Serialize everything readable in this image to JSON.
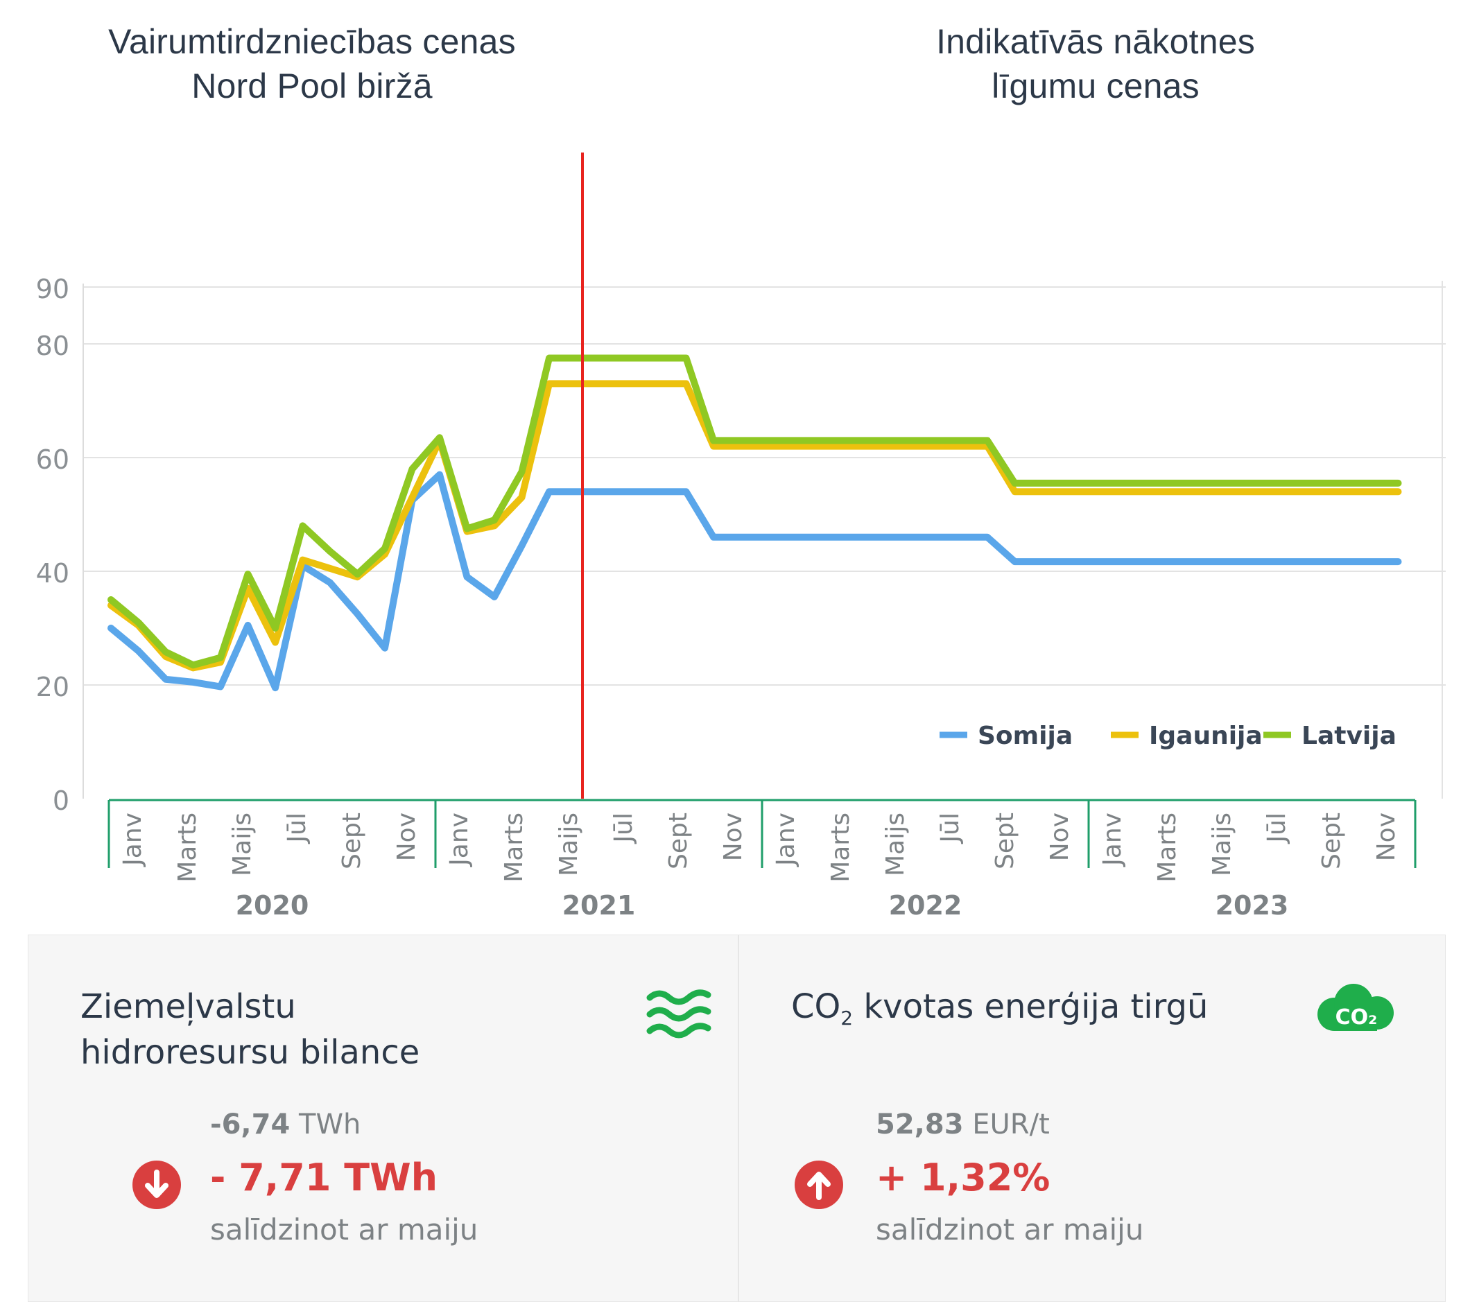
{
  "headings": {
    "left": "Vairumtirdzniecības cenas\nNord Pool biržā",
    "right": "Indikatīvās nākotnes\nlīgumu cenas"
  },
  "chart_data": {
    "type": "line",
    "ylim": [
      0,
      90
    ],
    "y_ticks": [
      "0",
      "20",
      "40",
      "60",
      "80",
      "90"
    ],
    "grid": true,
    "legend_position": "bottom-right",
    "month_labels": [
      "Janv",
      "Marts",
      "Maijs",
      "Jūl",
      "Sept",
      "Nov"
    ],
    "years": [
      "2020",
      "2021",
      "2022",
      "2023"
    ],
    "divider_after_month_index": 17,
    "divider_color": "#e8231e",
    "x": [
      0,
      1,
      2,
      3,
      4,
      5,
      6,
      7,
      8,
      9,
      10,
      11,
      12,
      13,
      14,
      15,
      16,
      17,
      18,
      19,
      20,
      21,
      22,
      23,
      24,
      25,
      26,
      27,
      28,
      29,
      30,
      31,
      32,
      33,
      34,
      35,
      36,
      37,
      38,
      39,
      40,
      41,
      42,
      43,
      44,
      45,
      46,
      47
    ],
    "series": [
      {
        "name": "Somija",
        "color": "#5aa6ea",
        "values": [
          30,
          26,
          21,
          20.5,
          19.7,
          30.5,
          19.5,
          41,
          38,
          32.5,
          26.5,
          52.5,
          57,
          39,
          35.5,
          44.5,
          54,
          54,
          54,
          54,
          54,
          54,
          46,
          46,
          46,
          46,
          46,
          46,
          46,
          46,
          46,
          46,
          46,
          41.7,
          41.7,
          41.7,
          41.7,
          41.7,
          41.7,
          41.7,
          41.7,
          41.7,
          41.7,
          41.7,
          41.7,
          41.7,
          41.7,
          41.7
        ]
      },
      {
        "name": "Igaunija",
        "color": "#ecc10d",
        "values": [
          34,
          30.5,
          25,
          23,
          24,
          37,
          27.5,
          42,
          40.5,
          39,
          43,
          53,
          63,
          47,
          48,
          53,
          73,
          73,
          73,
          73,
          73,
          73,
          62,
          62,
          62,
          62,
          62,
          62,
          62,
          62,
          62,
          62,
          62,
          54,
          54,
          54,
          54,
          54,
          54,
          54,
          54,
          54,
          54,
          54,
          54,
          54,
          54,
          54
        ]
      },
      {
        "name": "Latvija",
        "color": "#8fc823",
        "values": [
          35,
          31,
          25.8,
          23.5,
          24.8,
          39.5,
          30,
          48,
          43.5,
          39.5,
          44,
          58,
          63.5,
          47.5,
          49,
          57.5,
          77.5,
          77.5,
          77.5,
          77.5,
          77.5,
          77.5,
          63,
          63,
          63,
          63,
          63,
          63,
          63,
          63,
          63,
          63,
          63,
          55.5,
          55.5,
          55.5,
          55.5,
          55.5,
          55.5,
          55.5,
          55.5,
          55.5,
          55.5,
          55.5,
          55.5,
          55.5,
          55.5,
          55.5
        ]
      }
    ]
  },
  "panels": {
    "hydro": {
      "title": "Ziemeļvalstu\nhidroresursu bilance",
      "icon": "water-waves-icon",
      "icon_color": "#1fae4b",
      "base_value": "-6,74",
      "base_unit": "TWh",
      "change": "- 7,71 TWh",
      "direction": "down",
      "compare": "salīdzinot ar maiju"
    },
    "co2": {
      "title_pre": "CO",
      "title_sub": "2",
      "title_post": " kvotas enerģija tirgū",
      "icon": "co2-cloud-icon",
      "icon_label": "CO₂",
      "icon_color": "#1fae4b",
      "base_value": "52,83",
      "base_unit": "EUR/t",
      "change": "+ 1,32%",
      "direction": "up",
      "compare": "salīdzinot ar maiju"
    }
  }
}
